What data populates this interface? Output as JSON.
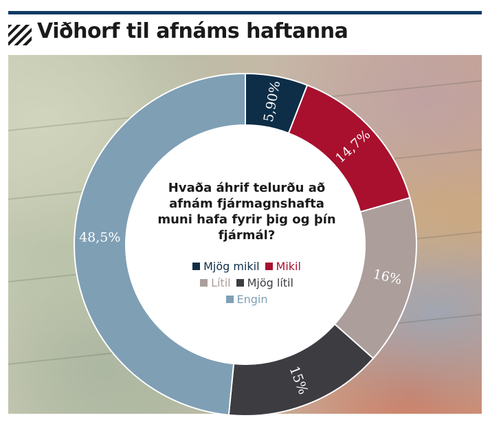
{
  "header": {
    "title": "Viðhorf til afnáms haftanna"
  },
  "question": {
    "text": "Hvaða áhrif telurðu að afnám fjármagnshafta muni hafa fyrir þig og þín fjármál?"
  },
  "chart_data": {
    "type": "pie",
    "subtype": "donut",
    "title": "Viðhorf til afnáms haftanna",
    "center_text": "Hvaða áhrif telurðu að afnám fjármagnshafta muni hafa fyrir þig og þín fjármál?",
    "slices": [
      {
        "name": "Mjög mikil",
        "value": 5.9,
        "label": "5,90%",
        "color": "#0e2e48"
      },
      {
        "name": "Mikil",
        "value": 14.7,
        "label": "14,7%",
        "color": "#a8102e"
      },
      {
        "name": "Lítil",
        "value": 16,
        "label": "16%",
        "color": "#ab9e9b"
      },
      {
        "name": "Mjög lítil",
        "value": 15,
        "label": "15%",
        "color": "#3d3c41"
      },
      {
        "name": "Engin",
        "value": 48.5,
        "label": "48,5%",
        "color": "#7f9fb5"
      }
    ],
    "legend": {
      "rows": [
        [
          "Mjög mikil",
          "Mikil"
        ],
        [
          "Lítil",
          "Mjög lítil"
        ],
        [
          "Engin"
        ]
      ],
      "placement": "center"
    },
    "label_color": "#ffffff"
  }
}
